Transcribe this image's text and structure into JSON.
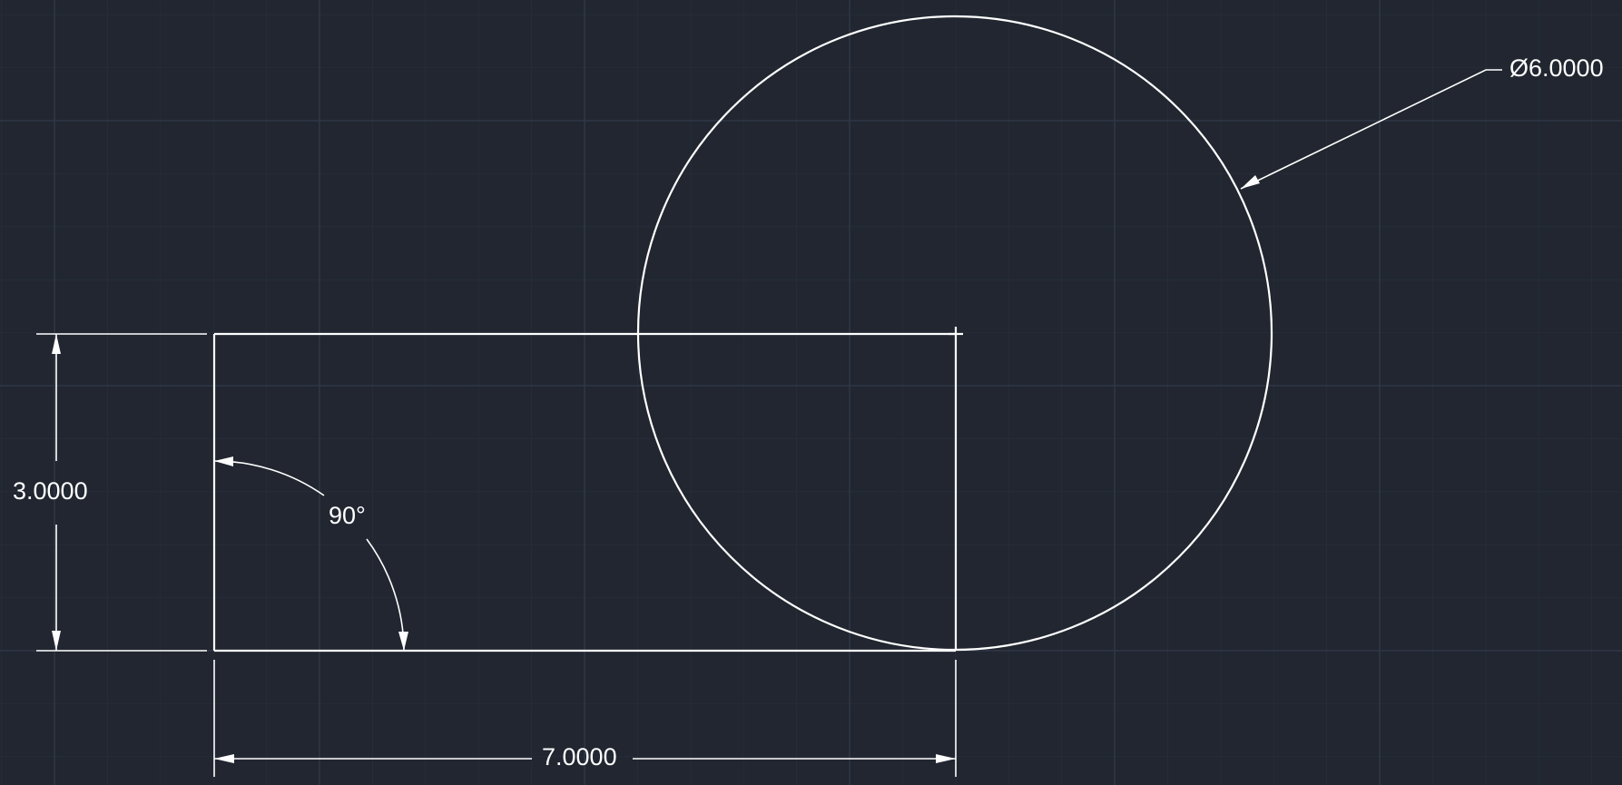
{
  "drawing": {
    "dimensions": {
      "diameter_label": "Ø6.0000",
      "height_label": "3.0000",
      "width_label": "7.0000",
      "angle_label": "90°"
    },
    "colors": {
      "background": "#212630",
      "geometry": "#ffffff",
      "grid_major": "#2f3745",
      "grid_minor": "#272d38"
    }
  }
}
